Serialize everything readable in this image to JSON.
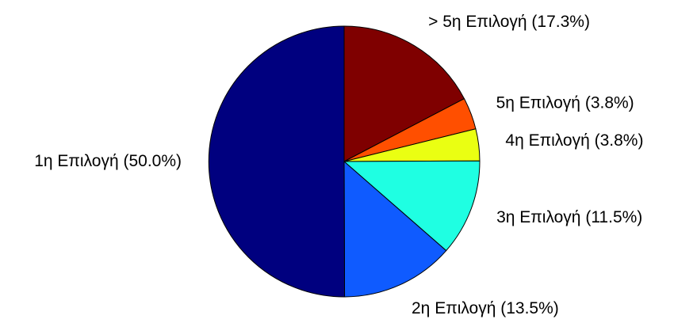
{
  "chart_data": {
    "type": "pie",
    "start_angle_deg": 90,
    "direction": "clockwise",
    "title": "",
    "legend": "none",
    "slices": [
      {
        "label": "> 5η Επιλογή (17.3%)",
        "value": 17.3,
        "color": "#7f0000"
      },
      {
        "label": "5η Επιλογή (3.8%)",
        "value": 3.8,
        "color": "#ff4f00"
      },
      {
        "label": "4η Επιλογή (3.8%)",
        "value": 3.8,
        "color": "#eaff12"
      },
      {
        "label": "3η Επιλογή (11.5%)",
        "value": 11.5,
        "color": "#1fffe2"
      },
      {
        "label": "2η Επιλογή (13.5%)",
        "value": 13.5,
        "color": "#0f5bff"
      },
      {
        "label": "1η Επιλογή (50.0%)",
        "value": 50.0,
        "color": "#00007f"
      }
    ]
  }
}
